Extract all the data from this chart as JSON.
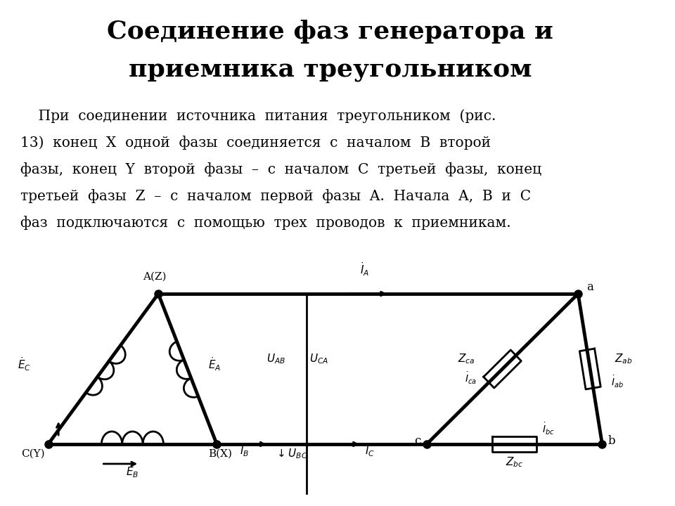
{
  "title_line1": "Соединение фаз генератора и",
  "title_line2": "приемника треугольником",
  "body_text": "    При  соединении  источника  питания  треугольником  (рис.\n13)  конец  X  одной  фазы  соединяется  с  началом  B  второй\nфазы,  конец  Y  второй  фазы  –  с  началом  C  третьей  фазы,  конец\nтретьей  фазы  Z  –  с  началом  первой  фазы  A.  Начала  A,  B  и  C\nфаз  подключаются  с  помощью  трех  проводов  к  приемникам.",
  "bg_color": "#ffffff",
  "text_color": "#000000",
  "lw": 2.0,
  "lw_thick": 3.5
}
